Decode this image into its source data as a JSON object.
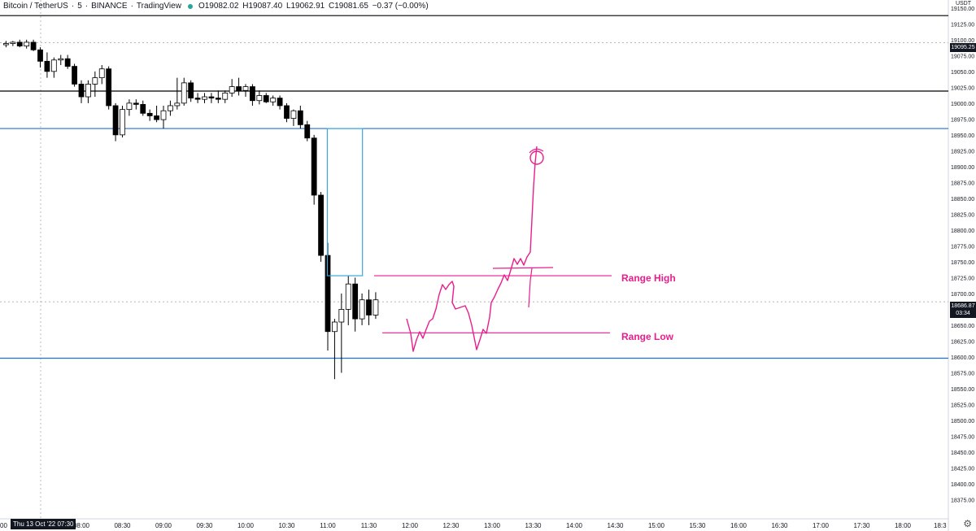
{
  "header": {
    "symbol": "Bitcoin / TetherUS",
    "interval": "5",
    "exchange": "BINANCE",
    "platform": "TradingView",
    "open": "O19082.02",
    "high": "H19087.40",
    "low": "L19062.91",
    "close": "C19081.65",
    "change": "−0.37 (−0.00%)"
  },
  "axis": {
    "currency": "USDT",
    "date_box": "Thu 13 Oct '22  07:30",
    "left_edge_label": "00",
    "right_edge_label": "18:3"
  },
  "price_labels": {
    "top": "19095.25",
    "current": "18686.87",
    "countdown": "03:34"
  },
  "annotations": {
    "range_high": "Range High",
    "range_low": "Range Low"
  },
  "colors": {
    "up_candle": "#ffffff",
    "down_candle": "#000000",
    "blue_level": "#1e6fd9",
    "black_level": "#000000",
    "box": "#38a8e0",
    "pink": "#e91e8c",
    "grid_dotted": "#9e9e9e"
  },
  "chart_data": {
    "type": "candlestick",
    "y_range": [
      18350,
      19160
    ],
    "y_ticks": [
      19150,
      19125,
      19100,
      19075,
      19050,
      19025,
      19000,
      18975,
      18950,
      18925,
      18900,
      18875,
      18850,
      18825,
      18800,
      18775,
      18750,
      18725,
      18700,
      18675,
      18650,
      18625,
      18600,
      18575,
      18550,
      18525,
      18500,
      18475,
      18450,
      18425,
      18400,
      18375
    ],
    "x_ticks": [
      "08:00",
      "08:30",
      "09:00",
      "09:30",
      "10:00",
      "10:30",
      "11:00",
      "11:30",
      "12:00",
      "12:30",
      "13:00",
      "13:30",
      "14:00",
      "14:30",
      "15:00",
      "15:30",
      "16:00",
      "16:30",
      "17:00",
      "17:30",
      "18:00"
    ],
    "first_candle_time": "07:05",
    "candle_interval_minutes": 5,
    "horizontal_levels": [
      {
        "price": 19138,
        "color": "black"
      },
      {
        "price": 19019,
        "color": "black"
      },
      {
        "price": 18960,
        "color": "blue"
      },
      {
        "price": 18598,
        "color": "blue"
      },
      {
        "price": 19095.25,
        "color": "dotted"
      },
      {
        "price": 18686.87,
        "color": "dotted"
      }
    ],
    "box": {
      "price_top": 18960,
      "price_bottom": 18728,
      "time_start": "11:05",
      "time_end": "11:20"
    },
    "range_high": 18728,
    "range_low": 18638,
    "candles": [
      {
        "o": 19092,
        "h": 19098,
        "l": 19088,
        "c": 19094
      },
      {
        "o": 19094,
        "h": 19098,
        "l": 19090,
        "c": 19096
      },
      {
        "o": 19096,
        "h": 19100,
        "l": 19088,
        "c": 19090
      },
      {
        "o": 19090,
        "h": 19100,
        "l": 19086,
        "c": 19096
      },
      {
        "o": 19096,
        "h": 19100,
        "l": 19082,
        "c": 19084
      },
      {
        "o": 19084,
        "h": 19088,
        "l": 19056,
        "c": 19066
      },
      {
        "o": 19066,
        "h": 19080,
        "l": 19040,
        "c": 19050
      },
      {
        "o": 19050,
        "h": 19072,
        "l": 19040,
        "c": 19068
      },
      {
        "o": 19068,
        "h": 19076,
        "l": 19060,
        "c": 19070
      },
      {
        "o": 19070,
        "h": 19076,
        "l": 19054,
        "c": 19058
      },
      {
        "o": 19058,
        "h": 19062,
        "l": 19026,
        "c": 19030
      },
      {
        "o": 19030,
        "h": 19036,
        "l": 19000,
        "c": 19010
      },
      {
        "o": 19010,
        "h": 19036,
        "l": 19000,
        "c": 19030
      },
      {
        "o": 19030,
        "h": 19050,
        "l": 19010,
        "c": 19040
      },
      {
        "o": 19040,
        "h": 19060,
        "l": 19030,
        "c": 19054
      },
      {
        "o": 19054,
        "h": 19058,
        "l": 18990,
        "c": 18996
      },
      {
        "o": 18996,
        "h": 19000,
        "l": 18940,
        "c": 18950
      },
      {
        "o": 18950,
        "h": 18996,
        "l": 18946,
        "c": 18990
      },
      {
        "o": 18990,
        "h": 19006,
        "l": 18980,
        "c": 19000
      },
      {
        "o": 19000,
        "h": 19006,
        "l": 18990,
        "c": 18998
      },
      {
        "o": 18998,
        "h": 19004,
        "l": 18980,
        "c": 18984
      },
      {
        "o": 18984,
        "h": 18990,
        "l": 18972,
        "c": 18980
      },
      {
        "o": 18980,
        "h": 18996,
        "l": 18970,
        "c": 18974
      },
      {
        "o": 18974,
        "h": 18996,
        "l": 18960,
        "c": 18988
      },
      {
        "o": 18988,
        "h": 19004,
        "l": 18980,
        "c": 18996
      },
      {
        "o": 18996,
        "h": 19040,
        "l": 18990,
        "c": 19000
      },
      {
        "o": 19000,
        "h": 19040,
        "l": 18996,
        "c": 19032
      },
      {
        "o": 19032,
        "h": 19036,
        "l": 19002,
        "c": 19008
      },
      {
        "o": 19008,
        "h": 19016,
        "l": 19000,
        "c": 19006
      },
      {
        "o": 19006,
        "h": 19016,
        "l": 19000,
        "c": 19010
      },
      {
        "o": 19010,
        "h": 19016,
        "l": 19000,
        "c": 19008
      },
      {
        "o": 19008,
        "h": 19020,
        "l": 19000,
        "c": 19006
      },
      {
        "o": 19006,
        "h": 19020,
        "l": 19000,
        "c": 19016
      },
      {
        "o": 19016,
        "h": 19038,
        "l": 19010,
        "c": 19026
      },
      {
        "o": 19026,
        "h": 19040,
        "l": 19012,
        "c": 19020
      },
      {
        "o": 19020,
        "h": 19030,
        "l": 19010,
        "c": 19026
      },
      {
        "o": 19026,
        "h": 19030,
        "l": 18996,
        "c": 19004
      },
      {
        "o": 19004,
        "h": 19020,
        "l": 18998,
        "c": 19012
      },
      {
        "o": 19012,
        "h": 19016,
        "l": 19000,
        "c": 19002
      },
      {
        "o": 19002,
        "h": 19012,
        "l": 18996,
        "c": 19008
      },
      {
        "o": 19008,
        "h": 19012,
        "l": 18990,
        "c": 18996
      },
      {
        "o": 18996,
        "h": 19000,
        "l": 18970,
        "c": 18976
      },
      {
        "o": 18976,
        "h": 18990,
        "l": 18964,
        "c": 18988
      },
      {
        "o": 18988,
        "h": 18996,
        "l": 18960,
        "c": 18966
      },
      {
        "o": 18966,
        "h": 18972,
        "l": 18940,
        "c": 18945
      },
      {
        "o": 18945,
        "h": 18950,
        "l": 18840,
        "c": 18855
      },
      {
        "o": 18855,
        "h": 18860,
        "l": 18750,
        "c": 18760
      },
      {
        "o": 18760,
        "h": 18780,
        "l": 18610,
        "c": 18640
      },
      {
        "o": 18640,
        "h": 18660,
        "l": 18565,
        "c": 18655
      },
      {
        "o": 18655,
        "h": 18700,
        "l": 18575,
        "c": 18675
      },
      {
        "o": 18675,
        "h": 18728,
        "l": 18650,
        "c": 18715
      },
      {
        "o": 18715,
        "h": 18725,
        "l": 18640,
        "c": 18660
      },
      {
        "o": 18660,
        "h": 18700,
        "l": 18650,
        "c": 18690
      },
      {
        "o": 18690,
        "h": 18706,
        "l": 18650,
        "c": 18666
      },
      {
        "o": 18666,
        "h": 18702,
        "l": 18660,
        "c": 18690
      }
    ]
  }
}
